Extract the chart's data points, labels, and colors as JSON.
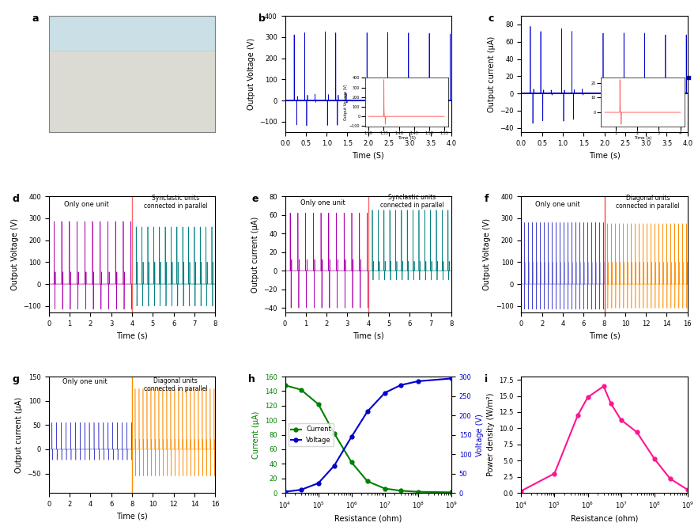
{
  "panel_b": {
    "title": "b",
    "xlabel": "Time (S)",
    "ylabel": "Output Voltage (V)",
    "ylim": [
      -150,
      400
    ],
    "xlim": [
      0,
      4
    ],
    "color": "#0000CD",
    "inset_color": "#FF6666"
  },
  "panel_c": {
    "title": "c",
    "xlabel": "Time (s)",
    "ylabel": "Output current (μA)",
    "ylim": [
      -45,
      90
    ],
    "xlim": [
      0,
      4
    ],
    "color": "#0000CD",
    "inset_color": "#FF6666"
  },
  "panel_d": {
    "title": "d",
    "xlabel": "Time (s)",
    "ylabel": "Output Voltage (V)",
    "ylim": [
      -130,
      400
    ],
    "xlim": [
      0,
      8
    ],
    "color1": "#AA00AA",
    "color2": "#008080",
    "divider": 4.0,
    "label1": "Only one unit",
    "label2": "Synclastic units\nconnected in parallel",
    "divider_color": "#FF6666"
  },
  "panel_e": {
    "title": "e",
    "xlabel": "Time (s)",
    "ylabel": "Output current (μA)",
    "ylim": [
      -45,
      80
    ],
    "xlim": [
      0,
      8
    ],
    "color1": "#AA00AA",
    "color2": "#008080",
    "divider": 4.0,
    "label1": "Only one unit",
    "label2": "Synclastic units\nconnected in parallel",
    "divider_color": "#FF6666"
  },
  "panel_f": {
    "title": "f",
    "xlabel": "Time (s)",
    "ylabel": "Output Voltage (V)",
    "ylim": [
      -130,
      400
    ],
    "xlim": [
      0,
      16
    ],
    "color1": "#4444CC",
    "color2": "#FF8C00",
    "divider": 8.0,
    "label1": "Only one unit",
    "label2": "Diagonal units\nconnected in parallel",
    "divider_color": "#FF4444"
  },
  "panel_g": {
    "title": "g",
    "xlabel": "Time (s)",
    "ylabel": "Output current (μA)",
    "ylim": [
      -90,
      150
    ],
    "xlim": [
      0,
      16
    ],
    "color1": "#4444CC",
    "color2": "#FF8C00",
    "divider": 8.0,
    "label1": "Only one unit",
    "label2": "Diagonal units\nconnected in parallel",
    "divider_color": "#FF8C00"
  },
  "panel_h": {
    "title": "h",
    "xlabel": "Resistance (ohm)",
    "ylabel_left": "Current (μA)",
    "ylabel_right": "Voltage (V)",
    "color_current": "#008000",
    "color_voltage": "#0000CD",
    "legend_current": "Current",
    "legend_voltage": "Voltage",
    "resistance": [
      10000.0,
      30000.0,
      100000.0,
      300000.0,
      1000000.0,
      3000000.0,
      10000000.0,
      30000000.0,
      100000000.0,
      1000000000.0
    ],
    "current": [
      148,
      142,
      122,
      82,
      42,
      16,
      6,
      3,
      1.5,
      0.8
    ],
    "voltage": [
      3,
      8,
      25,
      70,
      145,
      210,
      258,
      278,
      288,
      295
    ],
    "ylim_current": [
      0,
      160
    ],
    "ylim_voltage": [
      0,
      300
    ]
  },
  "panel_i": {
    "title": "i",
    "xlabel": "Resistance (ohm)",
    "ylabel": "Power density (W/m²)",
    "color": "#FF1493",
    "resistance": [
      10000.0,
      100000.0,
      500000.0,
      1000000.0,
      3000000.0,
      5000000.0,
      10000000.0,
      30000000.0,
      100000000.0,
      300000000.0,
      1000000000.0
    ],
    "power": [
      0.3,
      3.0,
      12.0,
      14.8,
      16.5,
      13.8,
      11.3,
      9.4,
      5.3,
      2.2,
      0.5
    ],
    "ylim": [
      0,
      18
    ]
  },
  "bg_color": "#FFFFFF"
}
